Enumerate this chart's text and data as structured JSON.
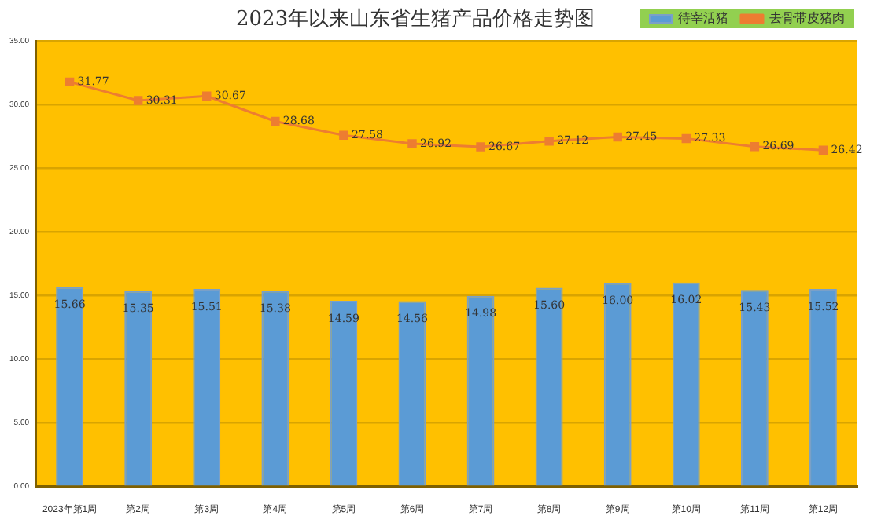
{
  "chart_data": {
    "type": "bar",
    "title": "2023年以来山东省生猪产品价格走势图",
    "categories": [
      "2023年第1周",
      "第2周",
      "第3周",
      "第4周",
      "第5周",
      "第6周",
      "第7周",
      "第8周",
      "第9周",
      "第10周",
      "第11周",
      "第12周"
    ],
    "series": [
      {
        "name": "待宰活猪",
        "color": "#5b9bd5",
        "values": [
          15.66,
          15.35,
          15.51,
          15.38,
          14.59,
          14.56,
          14.98,
          15.6,
          16.0,
          16.02,
          15.43,
          15.52
        ],
        "value_labels": [
          "15.66",
          "15.35",
          "15.51",
          "15.38",
          "14.59",
          "14.56",
          "14.98",
          "15.60",
          "16.00",
          "16.02",
          "15.43",
          "15.52"
        ]
      },
      {
        "name": "去骨带皮猪肉",
        "type": "line",
        "color": "#ed7d31",
        "values": [
          31.77,
          30.31,
          30.67,
          28.68,
          27.58,
          26.92,
          26.67,
          27.12,
          27.45,
          27.33,
          26.69,
          26.42
        ],
        "value_labels": [
          "31.77",
          "30.31",
          "30.67",
          "28.68",
          "27.58",
          "26.92",
          "26.67",
          "27.12",
          "27.45",
          "27.33",
          "26.69",
          "26.42"
        ]
      }
    ],
    "ylim": [
      0,
      35
    ],
    "yticks": [
      {
        "value": 0,
        "label": "0.00"
      },
      {
        "value": 5,
        "label": "5.00"
      },
      {
        "value": 10,
        "label": "10.00"
      },
      {
        "value": 15,
        "label": "15.00"
      },
      {
        "value": 20,
        "label": "20.00"
      },
      {
        "value": 25,
        "label": "25.00"
      },
      {
        "value": 30,
        "label": "30.00"
      },
      {
        "value": 35,
        "label": "35.00"
      }
    ],
    "grid": "y",
    "legend": "top right",
    "marker": "square",
    "line_style": "solid"
  }
}
